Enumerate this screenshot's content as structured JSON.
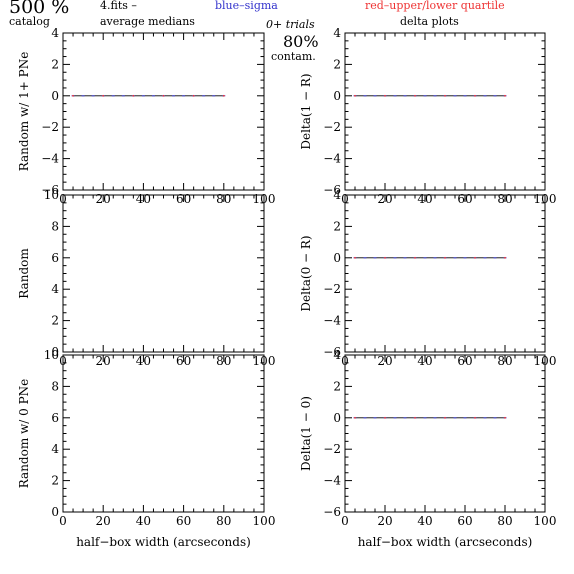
{
  "header": {
    "percent_label": "500 %",
    "catalog_label": "catalog",
    "file_label": "4.fits  –",
    "average_label": "average medians",
    "blue_label": "blue–sigma",
    "red_label": "red–upper/lower quartile",
    "trials_label": "0+ trials",
    "contam_value": "80%",
    "contam_label": "contam.",
    "delta_label": "delta plots",
    "blue_color": "#3333cc",
    "red_color": "#ee3333"
  },
  "chart_data": [
    {
      "type": "line",
      "ylabel": "Random w/ 1+ PNe",
      "xlabel": "",
      "xlim": [
        0,
        100
      ],
      "ylim": [
        -6,
        4
      ],
      "x_ticks": [
        "0",
        "20",
        "40",
        "60",
        "80",
        "100"
      ],
      "y_ticks": [
        "−6",
        "−4",
        "−2",
        "0",
        "2",
        "4"
      ],
      "x": [
        5,
        10,
        15,
        20,
        25,
        30,
        35,
        40,
        45,
        50,
        55,
        60,
        65,
        70,
        75,
        80
      ],
      "series": [
        {
          "values": [
            0,
            0,
            0,
            0,
            0,
            0,
            0,
            0,
            0,
            0,
            0,
            0,
            0,
            0,
            0,
            0
          ]
        }
      ]
    },
    {
      "type": "line",
      "ylabel": "Delta(1 − R)",
      "xlabel": "",
      "xlim": [
        0,
        100
      ],
      "ylim": [
        -6,
        4
      ],
      "x_ticks": [
        "0",
        "20",
        "40",
        "60",
        "80",
        "100"
      ],
      "y_ticks": [
        "−6",
        "−4",
        "−2",
        "0",
        "2",
        "4"
      ],
      "x": [
        5,
        10,
        15,
        20,
        25,
        30,
        35,
        40,
        45,
        50,
        55,
        60,
        65,
        70,
        75,
        80
      ],
      "series": [
        {
          "values": [
            0,
            0,
            0,
            0,
            0,
            0,
            0,
            0,
            0,
            0,
            0,
            0,
            0,
            0,
            0,
            0
          ]
        }
      ]
    },
    {
      "type": "line",
      "ylabel": "Random",
      "xlabel": "",
      "xlim": [
        0,
        100
      ],
      "ylim": [
        0,
        10
      ],
      "x_ticks": [
        "0",
        "20",
        "40",
        "60",
        "80",
        "100"
      ],
      "y_ticks": [
        "0",
        "2",
        "4",
        "6",
        "8",
        "10"
      ],
      "x": [],
      "series": []
    },
    {
      "type": "line",
      "ylabel": "Delta(0 − R)",
      "xlabel": "",
      "xlim": [
        0,
        100
      ],
      "ylim": [
        -6,
        4
      ],
      "x_ticks": [
        "0",
        "20",
        "40",
        "60",
        "80",
        "100"
      ],
      "y_ticks": [
        "−6",
        "−4",
        "−2",
        "0",
        "2",
        "4"
      ],
      "x": [
        5,
        10,
        15,
        20,
        25,
        30,
        35,
        40,
        45,
        50,
        55,
        60,
        65,
        70,
        75,
        80
      ],
      "series": [
        {
          "values": [
            0,
            0,
            0,
            0,
            0,
            0,
            0,
            0,
            0,
            0,
            0,
            0,
            0,
            0,
            0,
            0
          ]
        }
      ]
    },
    {
      "type": "line",
      "ylabel": "Random w/ 0 PNe",
      "xlabel": "half−box width (arcseconds)",
      "xlim": [
        0,
        100
      ],
      "ylim": [
        0,
        10
      ],
      "x_ticks": [
        "0",
        "20",
        "40",
        "60",
        "80",
        "100"
      ],
      "y_ticks": [
        "0",
        "2",
        "4",
        "6",
        "8",
        "10"
      ],
      "x": [],
      "series": []
    },
    {
      "type": "line",
      "ylabel": "Delta(1 − 0)",
      "xlabel": "half−box width (arcseconds)",
      "xlim": [
        0,
        100
      ],
      "ylim": [
        -6,
        4
      ],
      "x_ticks": [
        "0",
        "20",
        "40",
        "60",
        "80",
        "100"
      ],
      "y_ticks": [
        "−6",
        "−4",
        "−2",
        "0",
        "2",
        "4"
      ],
      "x": [
        5,
        10,
        15,
        20,
        25,
        30,
        35,
        40,
        45,
        50,
        55,
        60,
        65,
        70,
        75,
        80
      ],
      "series": [
        {
          "values": [
            0,
            0,
            0,
            0,
            0,
            0,
            0,
            0,
            0,
            0,
            0,
            0,
            0,
            0,
            0,
            0
          ]
        }
      ]
    }
  ]
}
